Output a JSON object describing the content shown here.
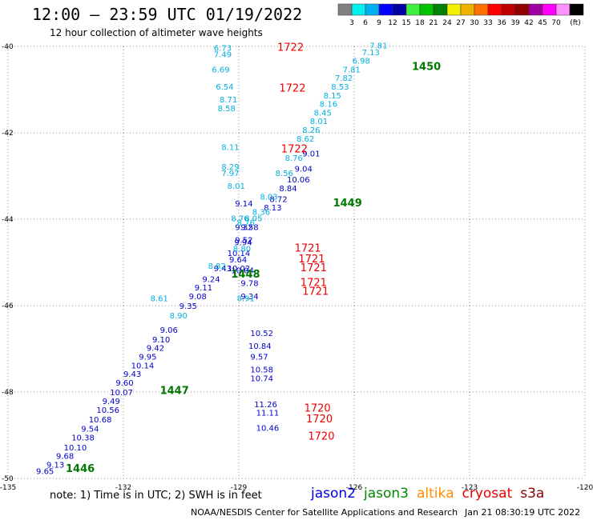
{
  "header": {
    "title": "12:00 – 23:59 UTC 01/19/2022",
    "subtitle": "12 hour collection of altimeter wave heights"
  },
  "legend_scale": {
    "colors": [
      "#808080",
      "#00f0f0",
      "#00b0f0",
      "#0000ff",
      "#0000a0",
      "#40f040",
      "#00c000",
      "#008000",
      "#f0f000",
      "#f0b000",
      "#ff7000",
      "#ff0000",
      "#c00000",
      "#900000",
      "#a000a0",
      "#ff00ff",
      "#ff90ff",
      "#000000"
    ],
    "ticks": [
      "3",
      "6",
      "9",
      "12",
      "15",
      "18",
      "21",
      "24",
      "27",
      "30",
      "33",
      "36",
      "39",
      "42",
      "45",
      "70"
    ],
    "unit": "(ft)"
  },
  "footer": {
    "note": "note:  1) Time is in UTC; 2) SWH is in feet",
    "center": "NOAA/NESDIS Center for Satellite Applications and Research",
    "timestamp": "Jan 21 08:30:19 UTC 2022"
  },
  "satellites": [
    {
      "name": "jason2",
      "color": "#0000ee"
    },
    {
      "name": "jason3",
      "color": "#008800"
    },
    {
      "name": "altika",
      "color": "#ff8c00"
    },
    {
      "name": "cryosat",
      "color": "#ee0000"
    },
    {
      "name": "s3a",
      "color": "#880000"
    }
  ],
  "chart_data": {
    "type": "scatter",
    "xlim": [
      -135,
      -120
    ],
    "ylim": [
      -50,
      -40
    ],
    "x_ticks": [
      -135,
      -132,
      -129,
      -126,
      -123,
      -120
    ],
    "y_ticks": [
      -40,
      -42,
      -44,
      -46,
      -48,
      -50
    ],
    "grid": true,
    "series": [
      {
        "name": "jason2",
        "color": "#0000cc",
        "points": [
          {
            "x": -134.27,
            "y": -49.9,
            "v": "9.65"
          },
          {
            "x": -134.0,
            "y": -49.75,
            "v": "9.13"
          },
          {
            "x": -133.75,
            "y": -49.55,
            "v": "9.68"
          },
          {
            "x": -133.55,
            "y": -49.35,
            "v": "10.10"
          },
          {
            "x": -133.35,
            "y": -49.12,
            "v": "10.38"
          },
          {
            "x": -133.1,
            "y": -48.92,
            "v": "9.54"
          },
          {
            "x": -132.9,
            "y": -48.7,
            "v": "10.68"
          },
          {
            "x": -132.7,
            "y": -48.48,
            "v": "10.56"
          },
          {
            "x": -132.55,
            "y": -48.28,
            "v": "9.49"
          },
          {
            "x": -132.35,
            "y": -48.07,
            "v": "10.07"
          },
          {
            "x": -132.2,
            "y": -47.85,
            "v": "9.60"
          },
          {
            "x": -132.0,
            "y": -47.65,
            "v": "9.43"
          },
          {
            "x": -131.8,
            "y": -47.45,
            "v": "10.14"
          },
          {
            "x": -131.6,
            "y": -47.25,
            "v": "9.95"
          },
          {
            "x": -131.4,
            "y": -47.05,
            "v": "9.42"
          },
          {
            "x": -131.25,
            "y": -46.85,
            "v": "9.10"
          },
          {
            "x": -131.05,
            "y": -46.63,
            "v": "9.06"
          },
          {
            "x": -130.55,
            "y": -46.07,
            "v": "9.35"
          },
          {
            "x": -130.3,
            "y": -45.85,
            "v": "9.08"
          },
          {
            "x": -130.15,
            "y": -45.65,
            "v": "9.11"
          },
          {
            "x": -129.95,
            "y": -45.45,
            "v": "9.24"
          },
          {
            "x": -129.65,
            "y": -45.2,
            "v": "9.43"
          },
          {
            "x": -129.3,
            "y": -44.85,
            "v": "10.14"
          },
          {
            "x": -129.12,
            "y": -44.6,
            "v": "9.94"
          },
          {
            "x": -128.95,
            "y": -44.25,
            "v": "9.58"
          },
          {
            "x": -128.35,
            "y": -43.8,
            "v": "8.13"
          },
          {
            "x": -128.2,
            "y": -43.6,
            "v": "8.72"
          },
          {
            "x": -127.95,
            "y": -43.35,
            "v": "8.84"
          },
          {
            "x": -127.75,
            "y": -43.15,
            "v": "10.06"
          },
          {
            "x": -127.55,
            "y": -42.9,
            "v": "9.04"
          },
          {
            "x": -127.35,
            "y": -42.55,
            "v": "9.01"
          },
          {
            "x": -129.1,
            "y": -43.7,
            "v": "9.14"
          },
          {
            "x": -129.1,
            "y": -44.25,
            "v": "9.32"
          },
          {
            "x": -129.1,
            "y": -44.55,
            "v": "9.52"
          },
          {
            "x": -129.2,
            "y": -45.25,
            "v": "10.04"
          },
          {
            "x": -129.25,
            "y": -45.0,
            "v": "9.64"
          },
          {
            "x": -129.3,
            "y": -45.2,
            "v": "10.02"
          },
          {
            "x": -128.95,
            "y": -45.55,
            "v": "9.78"
          },
          {
            "x": -128.95,
            "y": -45.85,
            "v": "9.34"
          },
          {
            "x": -128.7,
            "y": -46.7,
            "v": "10.52"
          },
          {
            "x": -128.75,
            "y": -47.0,
            "v": "10.84"
          },
          {
            "x": -128.7,
            "y": -47.25,
            "v": "9.57"
          },
          {
            "x": -128.7,
            "y": -47.55,
            "v": "10.58"
          },
          {
            "x": -128.7,
            "y": -47.75,
            "v": "10.74"
          },
          {
            "x": -128.6,
            "y": -48.35,
            "v": "11.26"
          },
          {
            "x": -128.55,
            "y": -48.55,
            "v": "11.11"
          },
          {
            "x": -128.55,
            "y": -48.9,
            "v": "10.46"
          }
        ]
      },
      {
        "name": "jason3",
        "color": "#00b0e0",
        "points": [
          {
            "x": -125.6,
            "y": -40.05,
            "v": "7.81"
          },
          {
            "x": -125.8,
            "y": -40.2,
            "v": "7.13"
          },
          {
            "x": -126.05,
            "y": -40.4,
            "v": "6.98"
          },
          {
            "x": -126.3,
            "y": -40.6,
            "v": "7.81"
          },
          {
            "x": -126.5,
            "y": -40.8,
            "v": "7.82"
          },
          {
            "x": -126.6,
            "y": -41.0,
            "v": "8.53"
          },
          {
            "x": -126.8,
            "y": -41.2,
            "v": "8.15"
          },
          {
            "x": -126.9,
            "y": -41.4,
            "v": "8.16"
          },
          {
            "x": -127.05,
            "y": -41.6,
            "v": "8.45"
          },
          {
            "x": -127.15,
            "y": -41.8,
            "v": "8.01"
          },
          {
            "x": -127.35,
            "y": -42.0,
            "v": "8.26"
          },
          {
            "x": -127.5,
            "y": -42.2,
            "v": "8.62"
          },
          {
            "x": -127.8,
            "y": -42.65,
            "v": "8.76"
          },
          {
            "x": -128.05,
            "y": -43.0,
            "v": "8.56"
          },
          {
            "x": -128.45,
            "y": -43.55,
            "v": "8.03"
          },
          {
            "x": -128.65,
            "y": -43.9,
            "v": "8.36"
          },
          {
            "x": -128.85,
            "y": -44.05,
            "v": "8.05"
          },
          {
            "x": -129.05,
            "y": -44.15,
            "v": "8.76"
          },
          {
            "x": -130.8,
            "y": -46.3,
            "v": "8.90"
          },
          {
            "x": -131.3,
            "y": -45.9,
            "v": "8.61"
          },
          {
            "x": -129.8,
            "y": -45.15,
            "v": "8.82"
          },
          {
            "x": -129.65,
            "y": -40.1,
            "v": "6.73"
          },
          {
            "x": -129.65,
            "y": -40.25,
            "v": "7.49"
          },
          {
            "x": -129.7,
            "y": -40.6,
            "v": "6.69"
          },
          {
            "x": -129.6,
            "y": -41.0,
            "v": "6.54"
          },
          {
            "x": -129.55,
            "y": -41.5,
            "v": "8.58"
          },
          {
            "x": -129.5,
            "y": -41.3,
            "v": "8.71"
          },
          {
            "x": -129.45,
            "y": -42.4,
            "v": "8.11"
          },
          {
            "x": -129.45,
            "y": -42.85,
            "v": "8.29"
          },
          {
            "x": -129.45,
            "y": -43.0,
            "v": "7.97"
          },
          {
            "x": -129.3,
            "y": -43.3,
            "v": "8.01"
          },
          {
            "x": -129.2,
            "y": -44.05,
            "v": "8.76"
          },
          {
            "x": -129.15,
            "y": -44.75,
            "v": "8.80"
          },
          {
            "x": -129.05,
            "y": -45.9,
            "v": "8.91"
          }
        ]
      },
      {
        "name": "cryosat",
        "color": "#ee0000",
        "points": [
          {
            "x": -128.0,
            "y": -40.1,
            "v": "1722"
          },
          {
            "x": -127.95,
            "y": -41.05,
            "v": "1722"
          },
          {
            "x": -127.9,
            "y": -42.45,
            "v": "1722"
          },
          {
            "x": -127.55,
            "y": -44.75,
            "v": "1721"
          },
          {
            "x": -127.45,
            "y": -45.0,
            "v": "1721"
          },
          {
            "x": -127.4,
            "y": -45.2,
            "v": "1721"
          },
          {
            "x": -127.4,
            "y": -45.55,
            "v": "1721"
          },
          {
            "x": -127.35,
            "y": -45.75,
            "v": "1721"
          },
          {
            "x": -127.3,
            "y": -48.45,
            "v": "1720"
          },
          {
            "x": -127.25,
            "y": -48.7,
            "v": "1720"
          },
          {
            "x": -127.2,
            "y": -49.1,
            "v": "1720"
          }
        ]
      },
      {
        "name": "jason2_time",
        "color": "#007700",
        "points": [
          {
            "x": -124.5,
            "y": -40.55,
            "v": "1450"
          },
          {
            "x": -126.55,
            "y": -43.7,
            "v": "1449"
          },
          {
            "x": -129.2,
            "y": -45.35,
            "v": "1448"
          },
          {
            "x": -131.05,
            "y": -48.05,
            "v": "1447"
          },
          {
            "x": -133.5,
            "y": -49.85,
            "v": "1446"
          }
        ]
      }
    ]
  }
}
